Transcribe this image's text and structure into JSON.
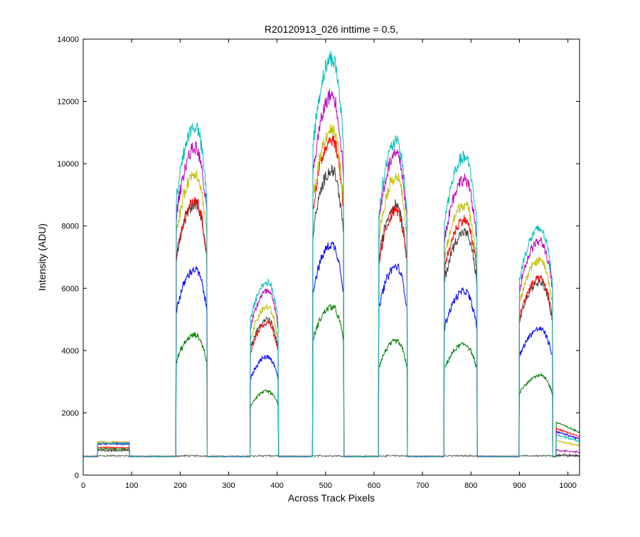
{
  "chart_data": {
    "type": "line",
    "title": "R20120913_026 inttime = 0.5,",
    "xlabel": "Across Track Pixels",
    "ylabel": "Intensity (ADU)",
    "xlim": [
      0,
      1024
    ],
    "ylim": [
      0,
      14000
    ],
    "xticks": [
      0,
      100,
      200,
      300,
      400,
      500,
      600,
      700,
      800,
      900,
      1000
    ],
    "yticks": [
      0,
      2000,
      4000,
      6000,
      8000,
      10000,
      12000,
      14000
    ],
    "xtick_labels": [
      "0",
      "100",
      "200",
      "300",
      "400",
      "500",
      "600",
      "700",
      "800",
      "900",
      "1000"
    ],
    "ytick_labels": [
      "0",
      "2000",
      "4000",
      "6000",
      "8000",
      "10000",
      "12000",
      "14000"
    ],
    "grid": false,
    "legend": "none",
    "baseline": 600,
    "bands": [
      {
        "x_start": 30,
        "x_end": 95,
        "shape": "flat",
        "series_peaks": [
          620,
          840,
          1000,
          790,
          880,
          1060,
          1020,
          1020
        ]
      },
      {
        "x_start": 192,
        "x_end": 255,
        "shape": "peaked",
        "series_peaks": [
          620,
          4500,
          6600,
          8700,
          8800,
          9700,
          10500,
          11200
        ]
      },
      {
        "x_start": 345,
        "x_end": 402,
        "shape": "peaked",
        "series_peaks": [
          620,
          2700,
          3800,
          5000,
          4900,
          5400,
          5900,
          6200
        ]
      },
      {
        "x_start": 474,
        "x_end": 537,
        "shape": "peaked",
        "series_peaks": [
          620,
          5400,
          7400,
          9800,
          10800,
          11100,
          12200,
          13400
        ]
      },
      {
        "x_start": 610,
        "x_end": 668,
        "shape": "peaked",
        "series_peaks": [
          620,
          4300,
          6700,
          8700,
          8500,
          9600,
          10300,
          10700
        ]
      },
      {
        "x_start": 745,
        "x_end": 812,
        "shape": "peaked",
        "series_peaks": [
          620,
          4200,
          5900,
          7800,
          8200,
          8700,
          9500,
          10200
        ]
      },
      {
        "x_start": 900,
        "x_end": 968,
        "shape": "peaked",
        "series_peaks": [
          620,
          3200,
          4700,
          6200,
          6300,
          6900,
          7500,
          7900
        ]
      },
      {
        "x_start": 976,
        "x_end": 1024,
        "shape": "falling",
        "series_peaks": [
          620,
          1700,
          1400,
          650,
          1500,
          1100,
          800,
          1300
        ]
      }
    ],
    "series": [
      {
        "color": "#5a6e5a"
      },
      {
        "color": "#007f00"
      },
      {
        "color": "#0000ff"
      },
      {
        "color": "#3f3f3f"
      },
      {
        "color": "#ff0000"
      },
      {
        "color": "#bfbf00"
      },
      {
        "color": "#bf00bf"
      },
      {
        "color": "#00bfbf"
      }
    ]
  }
}
